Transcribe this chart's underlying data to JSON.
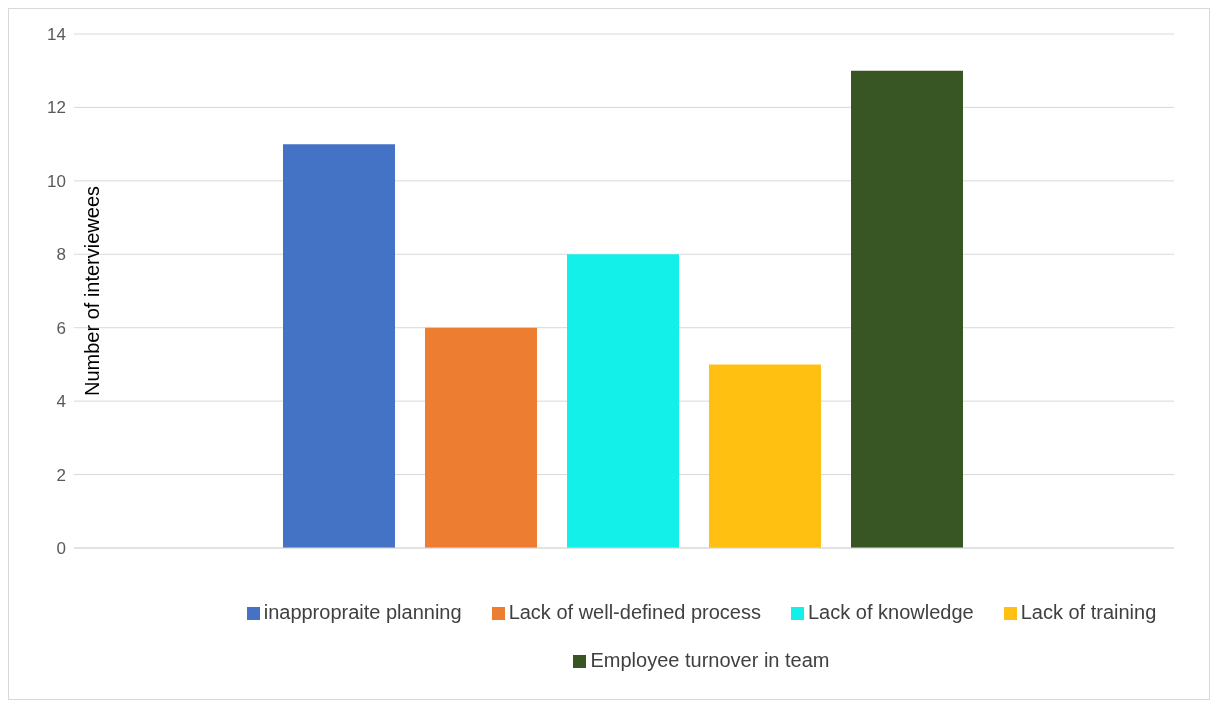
{
  "chart_data": {
    "type": "bar",
    "ylabel": "Number of interviewees",
    "categories": [
      null
    ],
    "series": [
      {
        "name": "inappropraite planning",
        "color": "#4472c4",
        "values": [
          11
        ]
      },
      {
        "name": "Lack of well-defined process",
        "color": "#ed7d31",
        "values": [
          6
        ]
      },
      {
        "name": "Lack of knowledge",
        "color": "#13f0ea",
        "values": [
          8
        ]
      },
      {
        "name": "Lack of training",
        "color": "#ffc012",
        "values": [
          5
        ]
      },
      {
        "name": "Employee turnover in team",
        "color": "#375623",
        "values": [
          13
        ]
      }
    ],
    "ylim": [
      0,
      14
    ],
    "yticks": [
      0,
      2,
      4,
      6,
      8,
      10,
      12,
      14
    ],
    "grid": "y",
    "legend": "bottom"
  }
}
